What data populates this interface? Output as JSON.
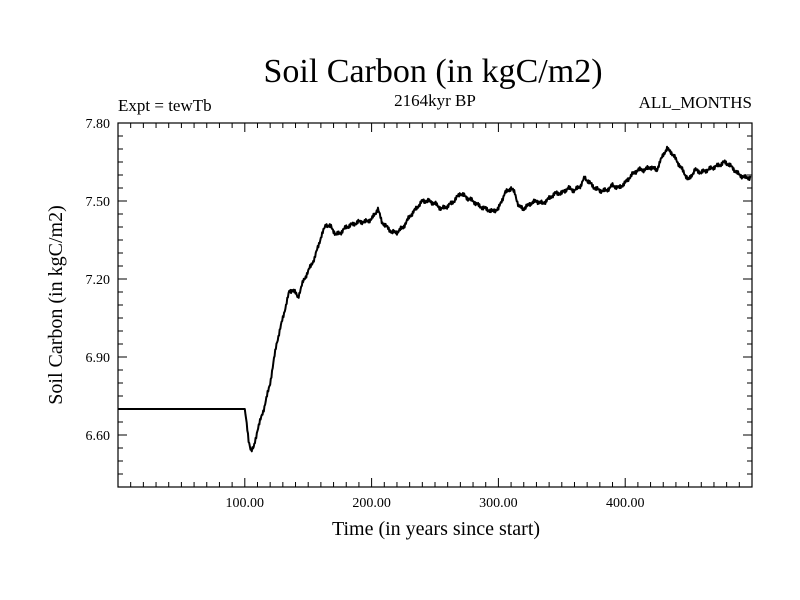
{
  "chart_data": {
    "type": "line",
    "title": "Soil Carbon (in kgC/m2)",
    "subtitle_left": "Expt = tewTb",
    "subtitle_center": "2164kyr BP",
    "subtitle_right": "ALL_MONTHS",
    "xlabel": "Time (in years since start)",
    "ylabel": "Soil Carbon (in kgC/m2)",
    "xlim": [
      0,
      500
    ],
    "ylim": [
      6.4,
      7.8
    ],
    "x_ticks": [
      100,
      200,
      300,
      400
    ],
    "x_tick_labels": [
      "100.00",
      "200.00",
      "300.00",
      "400.00"
    ],
    "y_ticks": [
      6.6,
      6.9,
      7.2,
      7.5,
      7.8
    ],
    "y_tick_labels": [
      "6.60",
      "6.90",
      "7.20",
      "7.50",
      "7.80"
    ],
    "grid": false,
    "series": [
      {
        "name": "Soil Carbon",
        "color": "#000000",
        "x": [
          0,
          100,
          101,
          103,
          105,
          107,
          110,
          115,
          120,
          125,
          130,
          135,
          138,
          142,
          146,
          150,
          155,
          160,
          164,
          168,
          172,
          176,
          180,
          185,
          190,
          195,
          200,
          205,
          208,
          212,
          216,
          220,
          225,
          230,
          235,
          240,
          245,
          250,
          255,
          260,
          265,
          270,
          273,
          276,
          280,
          285,
          290,
          295,
          300,
          305,
          310,
          313,
          316,
          320,
          325,
          330,
          335,
          340,
          345,
          350,
          355,
          360,
          365,
          368,
          372,
          376,
          380,
          385,
          390,
          395,
          400,
          405,
          410,
          415,
          420,
          425,
          430,
          433,
          436,
          440,
          445,
          450,
          455,
          460,
          465,
          470,
          475,
          478,
          482,
          486,
          490,
          495,
          499
        ],
        "y": [
          6.7,
          6.7,
          6.66,
          6.58,
          6.54,
          6.55,
          6.62,
          6.7,
          6.8,
          6.95,
          7.05,
          7.15,
          7.16,
          7.13,
          7.19,
          7.23,
          7.28,
          7.36,
          7.41,
          7.4,
          7.37,
          7.38,
          7.4,
          7.41,
          7.42,
          7.42,
          7.43,
          7.47,
          7.42,
          7.4,
          7.38,
          7.38,
          7.4,
          7.44,
          7.47,
          7.5,
          7.5,
          7.49,
          7.47,
          7.48,
          7.5,
          7.53,
          7.52,
          7.51,
          7.5,
          7.48,
          7.47,
          7.46,
          7.47,
          7.53,
          7.55,
          7.53,
          7.48,
          7.47,
          7.49,
          7.5,
          7.49,
          7.51,
          7.53,
          7.53,
          7.55,
          7.54,
          7.56,
          7.59,
          7.57,
          7.55,
          7.54,
          7.54,
          7.56,
          7.55,
          7.57,
          7.6,
          7.62,
          7.62,
          7.63,
          7.62,
          7.68,
          7.7,
          7.69,
          7.66,
          7.62,
          7.58,
          7.62,
          7.61,
          7.62,
          7.63,
          7.64,
          7.65,
          7.64,
          7.62,
          7.6,
          7.59,
          7.59
        ]
      }
    ]
  }
}
